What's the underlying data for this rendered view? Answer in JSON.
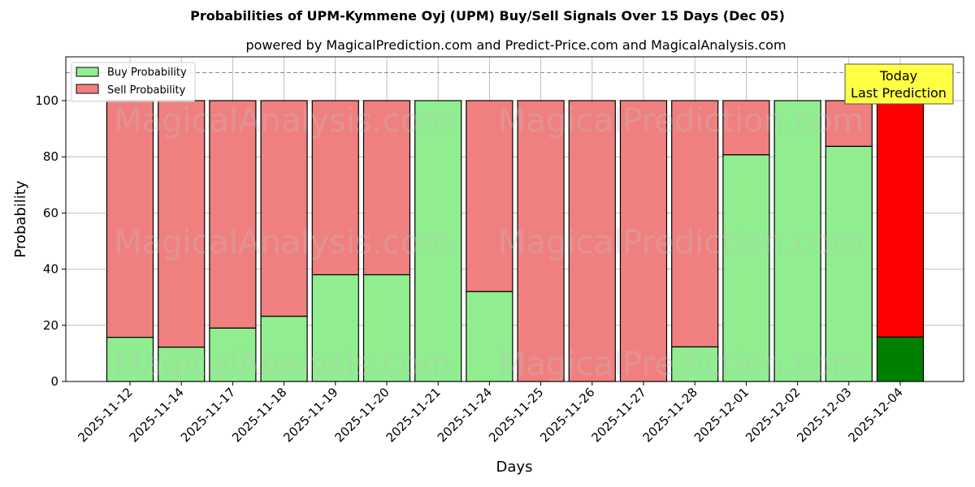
{
  "header": {
    "title": "Probabilities of UPM-Kymmene Oyj (UPM) Buy/Sell Signals Over 15 Days (Dec 05)",
    "subtitle": "powered by MagicalPrediction.com and Predict-Price.com and MagicalAnalysis.com"
  },
  "legend": {
    "buy_label": "Buy Probability",
    "sell_label": "Sell Probability"
  },
  "annotation": {
    "line1": "Today",
    "line2": "Last Prediction"
  },
  "watermarks": [
    "MagicalAnalysis.com",
    "MagicalPrediction.com"
  ],
  "colors": {
    "buy": "#90ee90",
    "sell": "#f08080",
    "today_buy": "#008000",
    "today_sell": "#ff0000",
    "annotation_bg": "#ffff44",
    "grid": "#b0b0b0"
  },
  "chart_data": {
    "type": "bar",
    "stacked": true,
    "title": "Probabilities of UPM-Kymmene Oyj (UPM) Buy/Sell Signals Over 15 Days (Dec 05)",
    "subtitle": "powered by MagicalPrediction.com and Predict-Price.com and MagicalAnalysis.com",
    "xlabel": "Days",
    "ylabel": "Probability",
    "ylim": [
      0,
      115
    ],
    "yticks": [
      0,
      20,
      40,
      60,
      80,
      100
    ],
    "grid": true,
    "legend_position": "upper left",
    "reference_line": {
      "y": 110,
      "style": "dashed"
    },
    "categories": [
      "2025-11-12",
      "2025-11-14",
      "2025-11-17",
      "2025-11-18",
      "2025-11-19",
      "2025-11-20",
      "2025-11-21",
      "2025-11-24",
      "2025-11-25",
      "2025-11-26",
      "2025-11-27",
      "2025-11-28",
      "2025-12-01",
      "2025-12-02",
      "2025-12-03",
      "2025-12-04"
    ],
    "series": [
      {
        "name": "Buy Probability",
        "values": [
          15.7,
          12.2,
          19.0,
          23.2,
          38.0,
          38.0,
          100,
          32.0,
          0,
          0,
          0,
          12.3,
          80.7,
          100,
          83.7,
          15.8
        ]
      },
      {
        "name": "Sell Probability",
        "values": [
          84.3,
          87.8,
          81.0,
          76.8,
          62.0,
          62.0,
          0,
          68.0,
          100,
          100,
          100,
          87.7,
          19.3,
          0,
          16.3,
          84.2
        ]
      }
    ],
    "highlight": {
      "category": "2025-12-04",
      "label": "Today\nLast Prediction"
    }
  }
}
